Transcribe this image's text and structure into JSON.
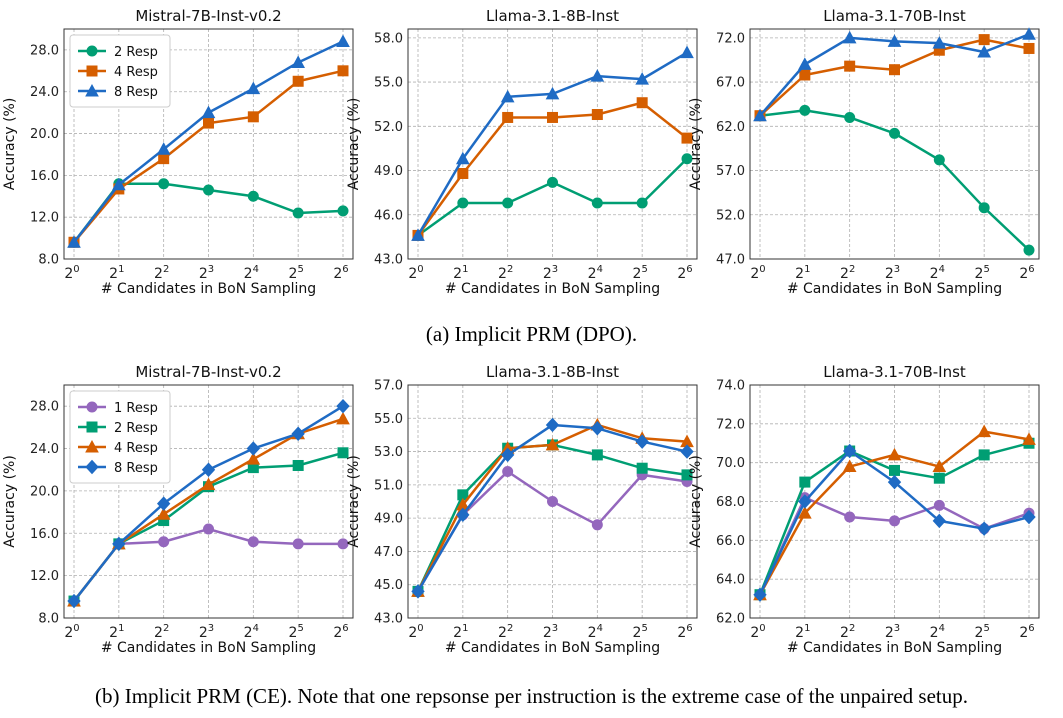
{
  "captions": {
    "a": "(a) Implicit PRM (DPO).",
    "b": "(b) Implicit PRM (CE). Note that one repsonse per instruction is the extreme case of the unpaired setup."
  },
  "colors": {
    "1 Resp": "#9467bd",
    "2 Resp": "#009e73",
    "4 Resp": "#d55e00",
    "8 Resp": "#1f6bc4"
  },
  "chart_data": [
    {
      "type": "line",
      "title": "Mistral-7B-Inst-v0.2",
      "xlabel": "# Candidates in BoN Sampling",
      "ylabel": "Accuracy (%)",
      "x": [
        0,
        1,
        2,
        3,
        4,
        5,
        6
      ],
      "x_tick_base": "2",
      "ylim": [
        8.0,
        30.0
      ],
      "yticks": [
        "8.0",
        "12.0",
        "16.0",
        "20.0",
        "24.0",
        "28.0"
      ],
      "grid": true,
      "legend": "top-left",
      "series": [
        {
          "name": "2 Resp",
          "marker": "circle",
          "values": [
            9.6,
            15.2,
            15.2,
            14.6,
            14.0,
            12.4,
            12.6
          ]
        },
        {
          "name": "4 Resp",
          "marker": "square",
          "values": [
            9.6,
            14.7,
            17.6,
            21.0,
            21.6,
            25.0,
            26.0
          ]
        },
        {
          "name": "8 Resp",
          "marker": "triangle",
          "values": [
            9.6,
            15.1,
            18.5,
            22.0,
            24.3,
            26.8,
            28.8
          ]
        }
      ]
    },
    {
      "type": "line",
      "title": "Llama-3.1-8B-Inst",
      "xlabel": "# Candidates in BoN Sampling",
      "ylabel": "Accuracy (%)",
      "x": [
        0,
        1,
        2,
        3,
        4,
        5,
        6
      ],
      "x_tick_base": "2",
      "ylim": [
        43.0,
        58.6
      ],
      "yticks": [
        "43.0",
        "46.0",
        "49.0",
        "52.0",
        "55.0",
        "58.0"
      ],
      "grid": true,
      "legend": "none",
      "series": [
        {
          "name": "2 Resp",
          "marker": "circle",
          "values": [
            44.6,
            46.8,
            46.8,
            48.2,
            46.8,
            46.8,
            49.8
          ]
        },
        {
          "name": "4 Resp",
          "marker": "square",
          "values": [
            44.6,
            48.8,
            52.6,
            52.6,
            52.8,
            53.6,
            51.2
          ]
        },
        {
          "name": "8 Resp",
          "marker": "triangle",
          "values": [
            44.6,
            49.8,
            54.0,
            54.2,
            55.4,
            55.2,
            57.0
          ]
        }
      ]
    },
    {
      "type": "line",
      "title": "Llama-3.1-70B-Inst",
      "xlabel": "# Candidates in BoN Sampling",
      "ylabel": "Accuracy (%)",
      "x": [
        0,
        1,
        2,
        3,
        4,
        5,
        6
      ],
      "x_tick_base": "2",
      "ylim": [
        47.0,
        73.0
      ],
      "yticks": [
        "47.0",
        "52.0",
        "57.0",
        "62.0",
        "67.0",
        "72.0"
      ],
      "grid": true,
      "legend": "none",
      "series": [
        {
          "name": "2 Resp",
          "marker": "circle",
          "values": [
            63.2,
            63.8,
            63.0,
            61.2,
            58.2,
            52.8,
            48.0
          ]
        },
        {
          "name": "4 Resp",
          "marker": "square",
          "values": [
            63.2,
            67.8,
            68.8,
            68.4,
            70.6,
            71.8,
            70.8
          ]
        },
        {
          "name": "8 Resp",
          "marker": "triangle",
          "values": [
            63.2,
            69.0,
            72.0,
            71.6,
            71.4,
            70.4,
            72.4
          ]
        }
      ]
    },
    {
      "type": "line",
      "title": "Mistral-7B-Inst-v0.2",
      "xlabel": "# Candidates in BoN Sampling",
      "ylabel": "Accuracy (%)",
      "x": [
        0,
        1,
        2,
        3,
        4,
        5,
        6
      ],
      "x_tick_base": "2",
      "ylim": [
        8.0,
        30.0
      ],
      "yticks": [
        "8.0",
        "12.0",
        "16.0",
        "20.0",
        "24.0",
        "28.0"
      ],
      "grid": true,
      "legend": "top-left",
      "series": [
        {
          "name": "1 Resp",
          "marker": "circle",
          "values": [
            9.6,
            15.0,
            15.2,
            16.4,
            15.2,
            15.0,
            15.0
          ]
        },
        {
          "name": "2 Resp",
          "marker": "square",
          "values": [
            9.6,
            15.0,
            17.2,
            20.4,
            22.2,
            22.4,
            23.6
          ]
        },
        {
          "name": "4 Resp",
          "marker": "triangle",
          "values": [
            9.6,
            15.0,
            17.8,
            20.6,
            23.0,
            25.4,
            26.8
          ]
        },
        {
          "name": "8 Resp",
          "marker": "diamond",
          "values": [
            9.6,
            15.0,
            18.8,
            22.0,
            24.0,
            25.4,
            28.0
          ]
        }
      ]
    },
    {
      "type": "line",
      "title": "Llama-3.1-8B-Inst",
      "xlabel": "# Candidates in BoN Sampling",
      "ylabel": "Accuracy (%)",
      "x": [
        0,
        1,
        2,
        3,
        4,
        5,
        6
      ],
      "x_tick_base": "2",
      "ylim": [
        43.0,
        57.0
      ],
      "yticks": [
        "43.0",
        "45.0",
        "47.0",
        "49.0",
        "51.0",
        "53.0",
        "55.0",
        "57.0"
      ],
      "grid": true,
      "legend": "none",
      "series": [
        {
          "name": "1 Resp",
          "marker": "circle",
          "values": [
            44.6,
            49.2,
            51.8,
            50.0,
            48.6,
            51.6,
            51.2
          ]
        },
        {
          "name": "2 Resp",
          "marker": "square",
          "values": [
            44.6,
            50.4,
            53.2,
            53.4,
            52.8,
            52.0,
            51.6
          ]
        },
        {
          "name": "4 Resp",
          "marker": "triangle",
          "values": [
            44.6,
            49.8,
            53.2,
            53.4,
            54.6,
            53.8,
            53.6
          ]
        },
        {
          "name": "8 Resp",
          "marker": "diamond",
          "values": [
            44.6,
            49.2,
            52.8,
            54.6,
            54.4,
            53.6,
            53.0
          ]
        }
      ]
    },
    {
      "type": "line",
      "title": "Llama-3.1-70B-Inst",
      "xlabel": "# Candidates in BoN Sampling",
      "ylabel": "Accuracy (%)",
      "x": [
        0,
        1,
        2,
        3,
        4,
        5,
        6
      ],
      "x_tick_base": "2",
      "ylim": [
        62.0,
        74.0
      ],
      "yticks": [
        "62.0",
        "64.0",
        "66.0",
        "68.0",
        "70.0",
        "72.0",
        "74.0"
      ],
      "grid": true,
      "legend": "none",
      "series": [
        {
          "name": "1 Resp",
          "marker": "circle",
          "values": [
            63.2,
            68.2,
            67.2,
            67.0,
            67.8,
            66.6,
            67.4
          ]
        },
        {
          "name": "2 Resp",
          "marker": "square",
          "values": [
            63.2,
            69.0,
            70.6,
            69.6,
            69.2,
            70.4,
            71.0
          ]
        },
        {
          "name": "4 Resp",
          "marker": "triangle",
          "values": [
            63.2,
            67.4,
            69.8,
            70.4,
            69.8,
            71.6,
            71.2
          ]
        },
        {
          "name": "8 Resp",
          "marker": "diamond",
          "values": [
            63.2,
            68.0,
            70.6,
            69.0,
            67.0,
            66.6,
            67.2
          ]
        }
      ]
    }
  ]
}
